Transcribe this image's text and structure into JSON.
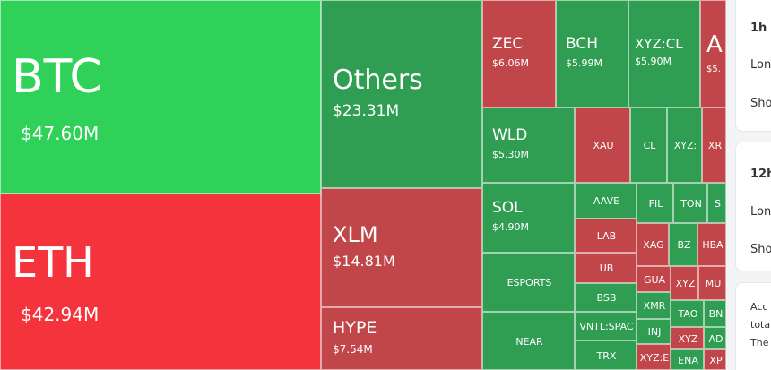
{
  "treemap": [
    {
      "sym": "BTC",
      "val": "$47.60M",
      "color": "#30d158"
    },
    {
      "sym": "ETH",
      "val": "$42.94M",
      "color": "#f5333d"
    },
    {
      "sym": "Others",
      "val": "$23.31M",
      "color": "#2f9e52"
    },
    {
      "sym": "XLM",
      "val": "$14.81M",
      "color": "#c0464a"
    },
    {
      "sym": "HYPE",
      "val": "$7.54M",
      "color": "#c0464a"
    },
    {
      "sym": "ZEC",
      "val": "$6.06M",
      "color": "#c0464a"
    },
    {
      "sym": "BCH",
      "val": "$5.99M",
      "color": "#2f9e52"
    },
    {
      "sym": "XYZ:CL",
      "val": "$5.90M",
      "color": "#2f9e52"
    },
    {
      "sym": "A",
      "val": "$5.",
      "color": "#c0464a"
    },
    {
      "sym": "WLD",
      "val": "$5.30M",
      "color": "#2f9e52"
    },
    {
      "sym": "XAU",
      "val": "",
      "color": "#c0464a"
    },
    {
      "sym": "CL",
      "val": "",
      "color": "#2f9e52"
    },
    {
      "sym": "XYZ:",
      "val": "",
      "color": "#2f9e52"
    },
    {
      "sym": "XR",
      "val": "",
      "color": "#c0464a"
    },
    {
      "sym": "SOL",
      "val": "$4.90M",
      "color": "#2f9e52"
    },
    {
      "sym": "AAVE",
      "val": "",
      "color": "#2f9e52"
    },
    {
      "sym": "FIL",
      "val": "",
      "color": "#2f9e52"
    },
    {
      "sym": "TON",
      "val": "",
      "color": "#2f9e52"
    },
    {
      "sym": "S",
      "val": "",
      "color": "#2f9e52"
    },
    {
      "sym": "LAB",
      "val": "",
      "color": "#c0464a"
    },
    {
      "sym": "XAG",
      "val": "",
      "color": "#c0464a"
    },
    {
      "sym": "BZ",
      "val": "",
      "color": "#2f9e52"
    },
    {
      "sym": "HBA",
      "val": "",
      "color": "#c0464a"
    },
    {
      "sym": "ESPORTS",
      "val": "",
      "color": "#2f9e52"
    },
    {
      "sym": "UB",
      "val": "",
      "color": "#c0464a"
    },
    {
      "sym": "GUA",
      "val": "",
      "color": "#c0464a"
    },
    {
      "sym": "BSB",
      "val": "",
      "color": "#2f9e52"
    },
    {
      "sym": "XYZ",
      "val": "",
      "color": "#c0464a"
    },
    {
      "sym": "MU",
      "val": "",
      "color": "#c0464a"
    },
    {
      "sym": "XMR",
      "val": "",
      "color": "#2f9e52"
    },
    {
      "sym": "TAO",
      "val": "",
      "color": "#2f9e52"
    },
    {
      "sym": "BN",
      "val": "",
      "color": "#2f9e52"
    },
    {
      "sym": "NEAR",
      "val": "",
      "color": "#2f9e52"
    },
    {
      "sym": "VNTL:SPAC",
      "val": "",
      "color": "#2f9e52"
    },
    {
      "sym": "INJ",
      "val": "",
      "color": "#2f9e52"
    },
    {
      "sym": "XYZ",
      "val": "",
      "color": "#c0464a"
    },
    {
      "sym": "AD",
      "val": "",
      "color": "#2f9e52"
    },
    {
      "sym": "TRX",
      "val": "",
      "color": "#2f9e52"
    },
    {
      "sym": "XYZ:E",
      "val": "",
      "color": "#c0464a"
    },
    {
      "sym": "ENA",
      "val": "",
      "color": "#2f9e52"
    },
    {
      "sym": "XP",
      "val": "",
      "color": "#c0464a"
    }
  ],
  "side": {
    "card1": {
      "title": "1h",
      "row1": "Lon",
      "row2": "Sho"
    },
    "card2": {
      "title": "12h",
      "row1": "Lon",
      "row2": "Sho"
    },
    "card3": {
      "line1": "Acc",
      "line2": "tota",
      "line3": "The"
    }
  }
}
